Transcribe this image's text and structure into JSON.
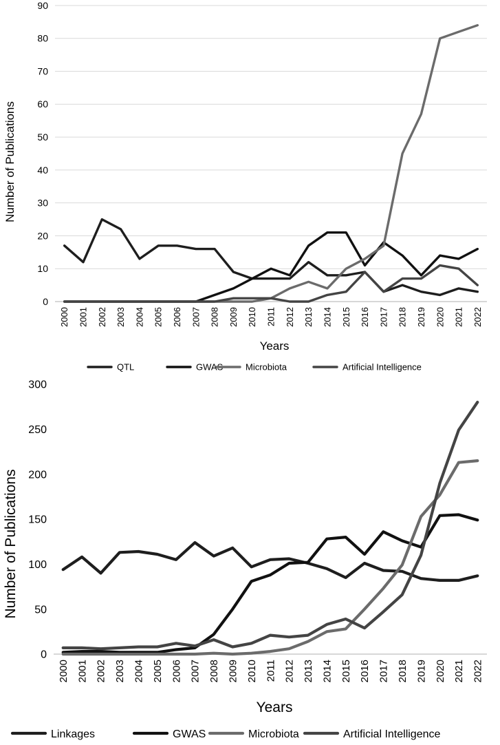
{
  "chart_data": [
    {
      "type": "line",
      "title": "",
      "xlabel": "Years",
      "ylabel": "Number of Publications",
      "ylim": [
        0,
        90
      ],
      "yticks": [
        0,
        10,
        20,
        30,
        40,
        50,
        60,
        70,
        80,
        90
      ],
      "grid": true,
      "legend_position": "bottom",
      "categories": [
        "2000",
        "2001",
        "2002",
        "2003",
        "2004",
        "2005",
        "2006",
        "2007",
        "2008",
        "2009",
        "2010",
        "2011",
        "2012",
        "2013",
        "2014",
        "2015",
        "2016",
        "2017",
        "2018",
        "2019",
        "2020",
        "2021",
        "2022"
      ],
      "series": [
        {
          "name": "QTL",
          "color": "#1e1e1e",
          "values": [
            17,
            12,
            25,
            22,
            13,
            17,
            17,
            16,
            16,
            9,
            7,
            7,
            7,
            12,
            8,
            8,
            9,
            3,
            5,
            3,
            2,
            4,
            3
          ]
        },
        {
          "name": "GWAS",
          "color": "#111111",
          "values": [
            0,
            0,
            0,
            0,
            0,
            0,
            0,
            0,
            2,
            4,
            7,
            10,
            8,
            17,
            21,
            21,
            11,
            18,
            14,
            8,
            14,
            13,
            16
          ]
        },
        {
          "name": "Microbiota",
          "color": "#6b6b6b",
          "values": [
            0,
            0,
            0,
            0,
            0,
            0,
            0,
            0,
            0,
            0,
            0,
            1,
            4,
            6,
            4,
            10,
            13,
            17,
            45,
            57,
            80,
            82,
            84
          ]
        },
        {
          "name": "Artificial Intelligence",
          "color": "#444444",
          "values": [
            0,
            0,
            0,
            0,
            0,
            0,
            0,
            0,
            0,
            1,
            1,
            1,
            0,
            0,
            2,
            3,
            9,
            3,
            7,
            7,
            11,
            10,
            5
          ]
        }
      ]
    },
    {
      "type": "line",
      "title": "",
      "xlabel": "Years",
      "ylabel": "Number of Publications",
      "ylim": [
        0,
        300
      ],
      "yticks": [
        0,
        50,
        100,
        150,
        200,
        250,
        300
      ],
      "grid": false,
      "legend_position": "bottom",
      "categories": [
        "2000",
        "2001",
        "2002",
        "2003",
        "2004",
        "2005",
        "2006",
        "2007",
        "2008",
        "2009",
        "2010",
        "2011",
        "2012",
        "2013",
        "2014",
        "2015",
        "2016",
        "2017",
        "2018",
        "2019",
        "2020",
        "2021",
        "2022"
      ],
      "series": [
        {
          "name": "Linkages",
          "color": "#1e1e1e",
          "values": [
            94,
            108,
            90,
            113,
            114,
            111,
            105,
            124,
            109,
            118,
            97,
            105,
            106,
            101,
            95,
            85,
            101,
            93,
            92,
            84,
            82,
            82,
            87
          ]
        },
        {
          "name": "GWAS",
          "color": "#111111",
          "values": [
            2,
            3,
            3,
            2,
            2,
            2,
            5,
            7,
            22,
            50,
            81,
            88,
            101,
            102,
            128,
            130,
            111,
            136,
            126,
            119,
            154,
            155,
            149
          ]
        },
        {
          "name": "Microbiota",
          "color": "#6b6b6b",
          "values": [
            0,
            0,
            0,
            0,
            0,
            0,
            0,
            0,
            1,
            0,
            1,
            3,
            6,
            14,
            25,
            28,
            50,
            73,
            99,
            153,
            177,
            213,
            215
          ]
        },
        {
          "name": "Artificial Intelligence",
          "color": "#444444",
          "values": [
            7,
            7,
            6,
            7,
            8,
            8,
            12,
            9,
            16,
            8,
            12,
            21,
            19,
            21,
            33,
            39,
            29,
            47,
            66,
            110,
            190,
            249,
            280
          ]
        }
      ]
    }
  ]
}
